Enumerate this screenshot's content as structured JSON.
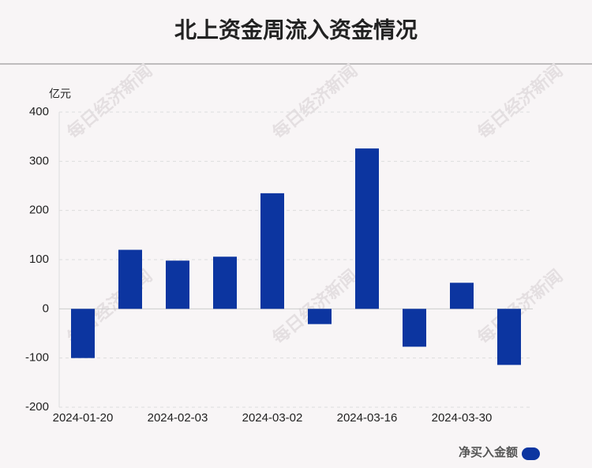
{
  "chart_data": {
    "type": "bar",
    "title": "北上资金周流入资金情况",
    "y_unit": "亿元",
    "categories": [
      "2024-01-20",
      null,
      "2024-02-03",
      null,
      "2024-03-02",
      null,
      "2024-03-16",
      null,
      "2024-03-30",
      null
    ],
    "series": [
      {
        "name": "净买入金额",
        "color": "#0c35a0",
        "values": [
          -100,
          120,
          98,
          106,
          235,
          -31,
          326,
          -77,
          53,
          -114
        ]
      }
    ],
    "ylim": [
      -200,
      400
    ],
    "yticks": [
      -200,
      -100,
      0,
      100,
      200,
      300,
      400
    ],
    "grid": true,
    "legend": "bottom-right",
    "watermark": "每日经济新闻"
  }
}
